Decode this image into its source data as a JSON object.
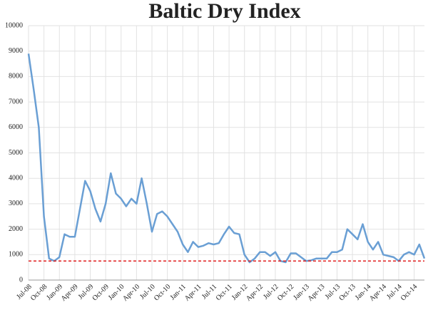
{
  "chart_data": {
    "type": "line",
    "title": "Baltic Dry Index",
    "categories": [
      "Jul-08",
      null,
      null,
      "Oct-08",
      null,
      null,
      "Jan-09",
      null,
      null,
      "Apr-09",
      null,
      null,
      "Jul-09",
      null,
      null,
      "Oct-09",
      null,
      null,
      "Jan-10",
      null,
      null,
      "Apr-10",
      null,
      null,
      "Jul-10",
      null,
      null,
      "Oct-10",
      null,
      null,
      "Jan-11",
      null,
      null,
      "Apr-11",
      null,
      null,
      "Jul-11",
      null,
      null,
      "Oct-11",
      null,
      null,
      "Jan-12",
      null,
      null,
      "Apr-12",
      null,
      null,
      "Jul-12",
      null,
      null,
      "Oct-12",
      null,
      null,
      "Jan-13",
      null,
      null,
      "Apr-13",
      null,
      null,
      "Jul-13",
      null,
      null,
      "Oct-13",
      null,
      null,
      "Jan-14",
      null,
      null,
      "Apr-14",
      null,
      null,
      "Jul-14",
      null,
      null,
      "Oct-14",
      null,
      null
    ],
    "series": [
      {
        "name": "Baltic Dry Index",
        "color": "#6a9fd4",
        "values": [
          8900,
          7500,
          6000,
          2500,
          850,
          750,
          900,
          1800,
          1700,
          1700,
          2800,
          3900,
          3500,
          2800,
          2300,
          3000,
          4200,
          3400,
          3200,
          2900,
          3200,
          3000,
          4000,
          3000,
          1900,
          2600,
          2700,
          2500,
          2200,
          1900,
          1400,
          1100,
          1500,
          1300,
          1350,
          1450,
          1400,
          1450,
          1800,
          2100,
          1850,
          1800,
          1000,
          700,
          850,
          1100,
          1100,
          950,
          1100,
          750,
          700,
          1050,
          1050,
          900,
          750,
          780,
          850,
          850,
          850,
          1100,
          1100,
          1200,
          2000,
          1800,
          1600,
          2200,
          1500,
          1200,
          1500,
          1000,
          950,
          900,
          750,
          1000,
          1100,
          1000,
          1400,
          850
        ]
      }
    ],
    "reference_line": {
      "value": 750,
      "color": "#e02020"
    },
    "ylim": [
      0,
      10000
    ],
    "yticks": [
      0,
      1000,
      2000,
      3000,
      4000,
      5000,
      6000,
      7000,
      8000,
      9000,
      10000
    ],
    "grid": true
  }
}
